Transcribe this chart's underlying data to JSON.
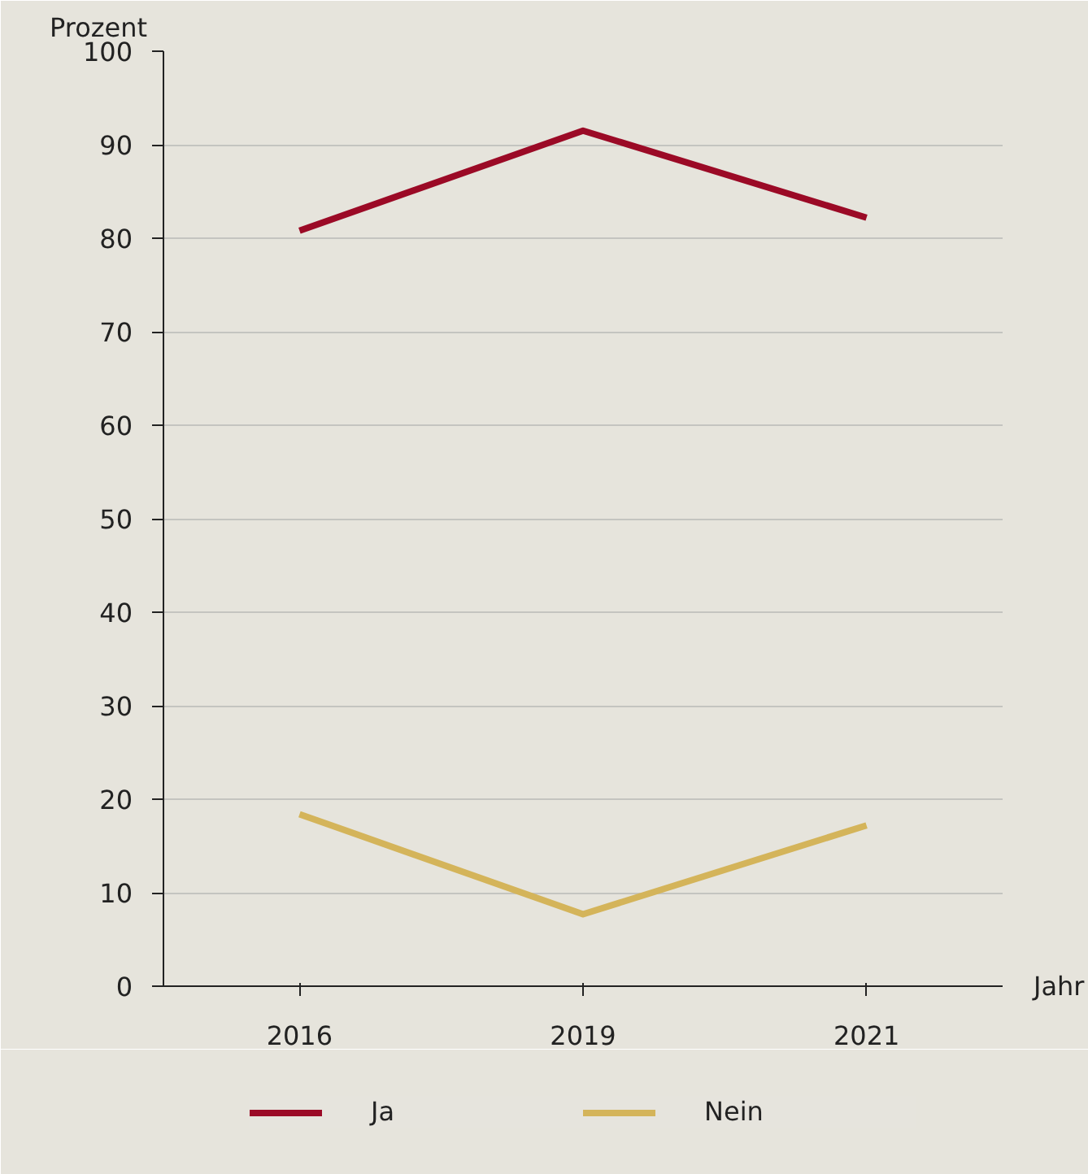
{
  "chart_data": {
    "type": "line",
    "ylabel": "Prozent",
    "xlabel": "Jahr",
    "categories": [
      "2016",
      "2019",
      "2021"
    ],
    "series": [
      {
        "name": "Ja",
        "color": "#9b0a26",
        "values": [
          80.8,
          91.5,
          82.2
        ]
      },
      {
        "name": "Nein",
        "color": "#d4b45a",
        "values": [
          18.4,
          7.7,
          17.2
        ]
      }
    ],
    "ylim": [
      0,
      100
    ],
    "yticks": [
      0,
      10,
      20,
      30,
      40,
      50,
      60,
      70,
      80,
      90,
      100
    ],
    "grid": "y",
    "legend": "bottom",
    "marker": "none",
    "line_style": "solid"
  }
}
